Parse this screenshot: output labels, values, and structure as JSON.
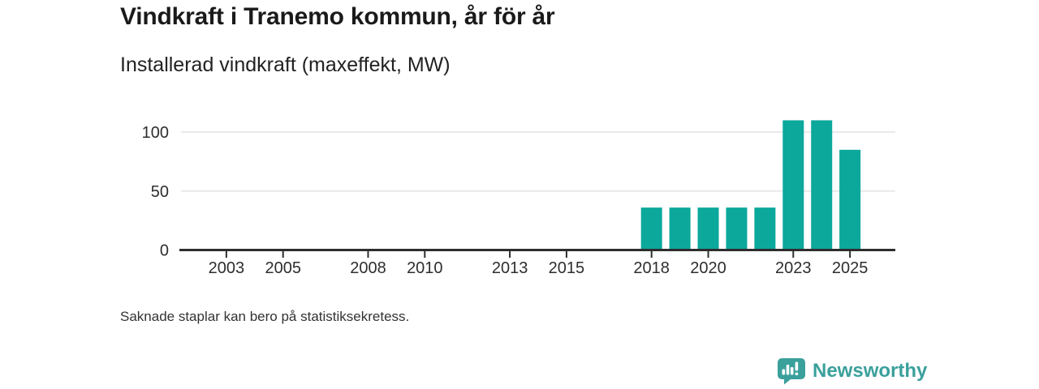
{
  "header": {
    "title": "Vindkraft i Tranemo kommun, år för år",
    "subtitle": "Installerad vindkraft (maxeffekt, MW)"
  },
  "footnote": "Saknade staplar kan bero på statistiksekretess.",
  "branding": {
    "logo_text": "Newsworthy",
    "logo_icon": "bar-chart-speech-bubble-icon",
    "brand_color": "#3aa09b"
  },
  "chart_data": {
    "type": "bar",
    "title": "Vindkraft i Tranemo kommun, år för år",
    "ylabel": "Installerad vindkraft (maxeffekt, MW)",
    "unit": "MW",
    "categories": [
      2018,
      2019,
      2020,
      2021,
      2022,
      2023,
      2024,
      2025
    ],
    "values": [
      36,
      36,
      36,
      36,
      36,
      110,
      110,
      85
    ],
    "x_axis_tick_labels": [
      "2003",
      "2005",
      "2008",
      "2010",
      "2013",
      "2015",
      "2018",
      "2020",
      "2023",
      "2025"
    ],
    "y_ticks": [
      0,
      50,
      100
    ],
    "x_domain": [
      2001.4,
      2026.6
    ],
    "ylim": [
      0,
      115
    ],
    "grid": "horizontal-only",
    "legend": "none",
    "bar_color": "#0ca89c",
    "axis_color": "#2e2e2e",
    "grid_color": "#e3e3e3",
    "tick_label_color": "#2e2e2e",
    "note": "Saknade staplar kan bero på statistiksekretess."
  }
}
